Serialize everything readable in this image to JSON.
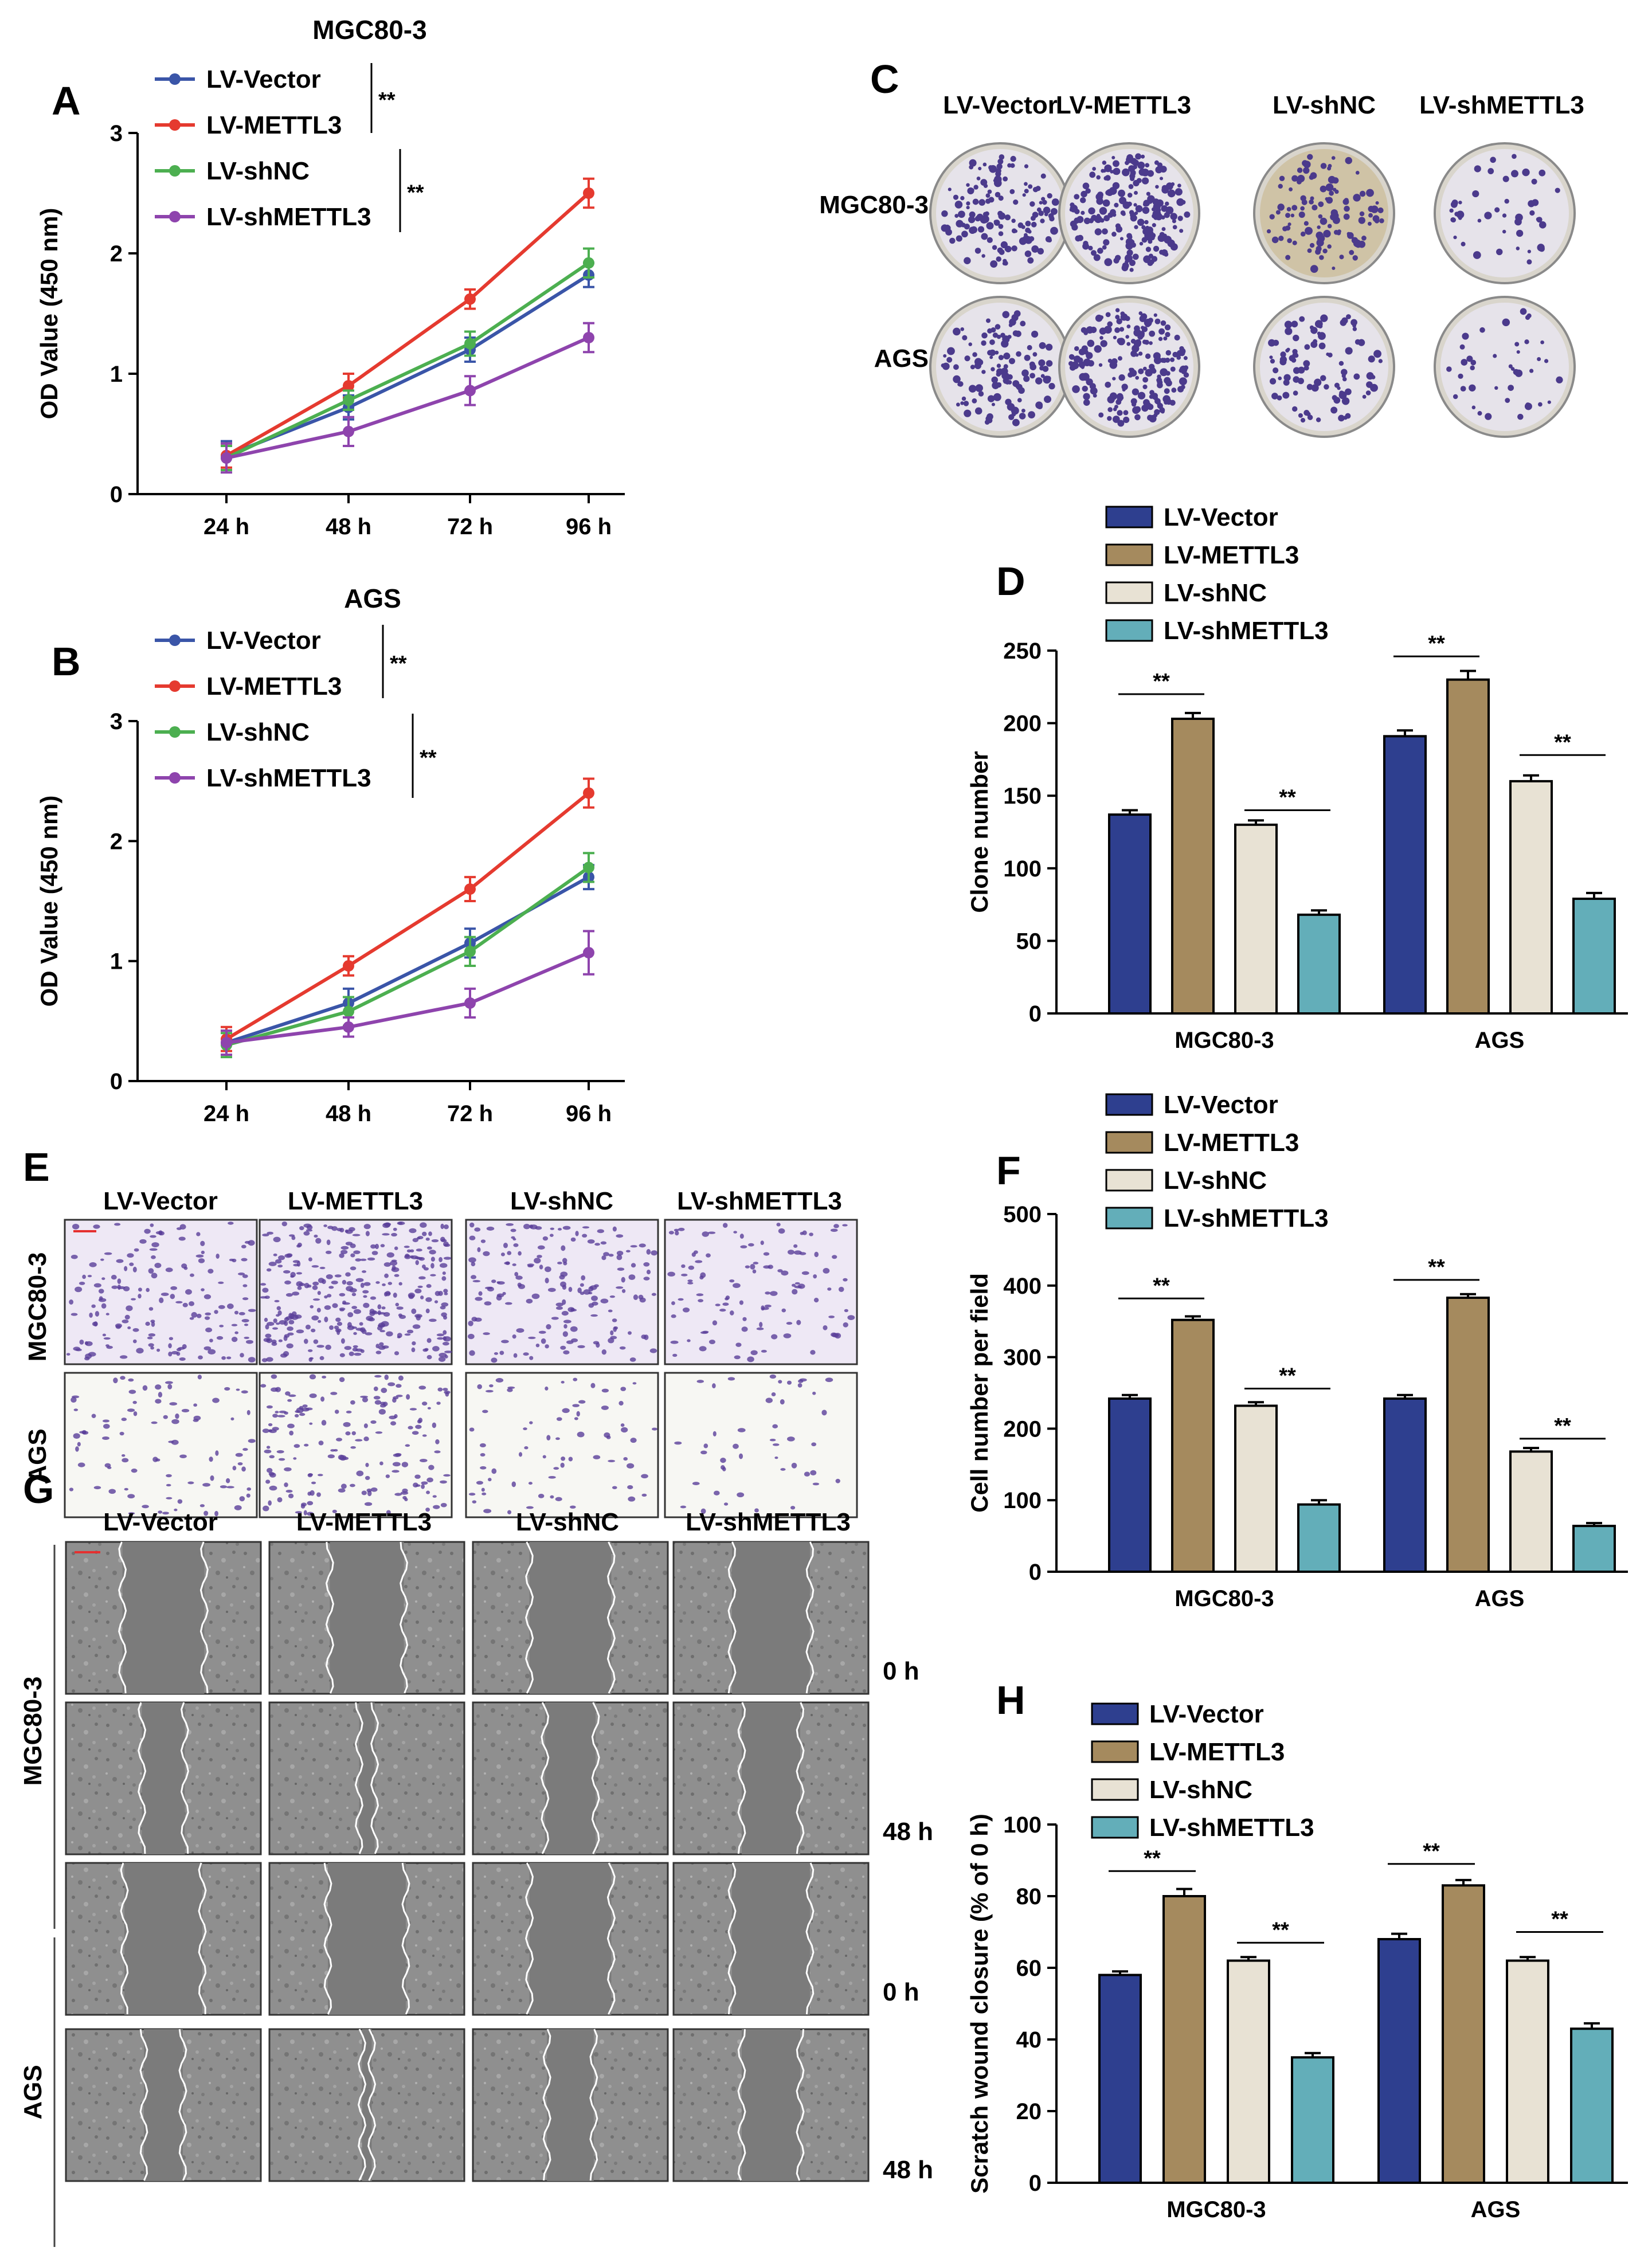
{
  "colors": {
    "vector_line": "#3a55a8",
    "metttl3_line": "#e53a2f",
    "shnc_line": "#4caf50",
    "shmettl3_line": "#8e44ad",
    "vector_bar": "#2e3f8f",
    "mettl3_bar": "#a58a5e",
    "shnc_bar": "#e8e2d4",
    "shmettl3_bar": "#63aeb9"
  },
  "panels": {
    "A": "A",
    "B": "B",
    "C": "C",
    "D": "D",
    "E": "E",
    "F": "F",
    "G": "G",
    "H": "H"
  },
  "groups": [
    "LV-Vector",
    "LV-METTL3",
    "LV-shNC",
    "LV-shMETTL3"
  ],
  "sig": "**",
  "cell_lines": [
    "MGC80-3",
    "AGS"
  ],
  "wound_times": [
    "0 h",
    "48 h",
    "0 h",
    "48 h"
  ],
  "chart_data": [
    {
      "panel": "A",
      "type": "line",
      "title": "MGC80-3",
      "categories": [
        "24 h",
        "48 h",
        "72 h",
        "96 h"
      ],
      "ylabel": "OD Value (450 nm)",
      "ylim": [
        0,
        3
      ],
      "yticks": [
        "0",
        "1",
        "2",
        "3"
      ],
      "series": [
        {
          "name": "LV-Vector",
          "values": [
            0.32,
            0.72,
            1.2,
            1.82
          ],
          "err": [
            0.12,
            0.1,
            0.1,
            0.1
          ]
        },
        {
          "name": "LV-METTL3",
          "values": [
            0.32,
            0.9,
            1.62,
            2.5
          ],
          "err": [
            0.1,
            0.1,
            0.08,
            0.12
          ]
        },
        {
          "name": "LV-shNC",
          "values": [
            0.3,
            0.78,
            1.25,
            1.92
          ],
          "err": [
            0.1,
            0.08,
            0.1,
            0.12
          ]
        },
        {
          "name": "LV-shMETTL3",
          "values": [
            0.3,
            0.52,
            0.86,
            1.3
          ],
          "err": [
            0.12,
            0.12,
            0.12,
            0.12
          ]
        }
      ]
    },
    {
      "panel": "B",
      "type": "line",
      "title": "AGS",
      "categories": [
        "24 h",
        "48 h",
        "72 h",
        "96 h"
      ],
      "ylabel": "OD Value (450 nm)",
      "ylim": [
        0,
        3
      ],
      "yticks": [
        "0",
        "1",
        "2",
        "3"
      ],
      "series": [
        {
          "name": "LV-Vector",
          "values": [
            0.32,
            0.65,
            1.15,
            1.7
          ],
          "err": [
            0.1,
            0.12,
            0.12,
            0.1
          ]
        },
        {
          "name": "LV-METTL3",
          "values": [
            0.35,
            0.96,
            1.6,
            2.4
          ],
          "err": [
            0.1,
            0.08,
            0.1,
            0.12
          ]
        },
        {
          "name": "LV-shNC",
          "values": [
            0.3,
            0.58,
            1.08,
            1.78
          ],
          "err": [
            0.1,
            0.12,
            0.12,
            0.12
          ]
        },
        {
          "name": "LV-shMETTL3",
          "values": [
            0.32,
            0.45,
            0.65,
            1.07
          ],
          "err": [
            0.1,
            0.08,
            0.12,
            0.18
          ]
        }
      ]
    },
    {
      "panel": "D",
      "type": "bar",
      "categories": [
        "MGC80-3",
        "AGS"
      ],
      "ylabel": "Clone number",
      "ylim": [
        0,
        250
      ],
      "yticks": [
        "0",
        "50",
        "100",
        "150",
        "200",
        "250"
      ],
      "series": [
        {
          "name": "LV-Vector",
          "values": [
            137,
            191
          ],
          "err": [
            3,
            4
          ]
        },
        {
          "name": "LV-METTL3",
          "values": [
            203,
            230
          ],
          "err": [
            4,
            6
          ]
        },
        {
          "name": "LV-shNC",
          "values": [
            130,
            160
          ],
          "err": [
            3,
            4
          ]
        },
        {
          "name": "LV-shMETTL3",
          "values": [
            68,
            79
          ],
          "err": [
            3,
            4
          ]
        }
      ],
      "significance": [
        {
          "group": 0,
          "from": 0,
          "to": 1,
          "level": 220
        },
        {
          "group": 0,
          "from": 2,
          "to": 3,
          "level": 140
        },
        {
          "group": 1,
          "from": 0,
          "to": 1,
          "level": 246
        },
        {
          "group": 1,
          "from": 2,
          "to": 3,
          "level": 178
        }
      ]
    },
    {
      "panel": "F",
      "type": "bar",
      "categories": [
        "MGC80-3",
        "AGS"
      ],
      "ylabel": "Cell number per field",
      "ylim": [
        0,
        500
      ],
      "yticks": [
        "0",
        "100",
        "200",
        "300",
        "400",
        "500"
      ],
      "series": [
        {
          "name": "LV-Vector",
          "values": [
            242,
            242
          ],
          "err": [
            5,
            5
          ]
        },
        {
          "name": "LV-METTL3",
          "values": [
            352,
            383
          ],
          "err": [
            5,
            5
          ]
        },
        {
          "name": "LV-shNC",
          "values": [
            232,
            168
          ],
          "err": [
            5,
            5
          ]
        },
        {
          "name": "LV-shMETTL3",
          "values": [
            94,
            64
          ],
          "err": [
            6,
            4
          ]
        }
      ],
      "significance": [
        {
          "group": 0,
          "from": 0,
          "to": 1,
          "level": 382
        },
        {
          "group": 0,
          "from": 2,
          "to": 3,
          "level": 256
        },
        {
          "group": 1,
          "from": 0,
          "to": 1,
          "level": 408
        },
        {
          "group": 1,
          "from": 2,
          "to": 3,
          "level": 186
        }
      ]
    },
    {
      "panel": "H",
      "type": "bar",
      "categories": [
        "MGC80-3",
        "AGS"
      ],
      "ylabel": "Scratch wound closure (% of 0 h)",
      "ylim": [
        0,
        100
      ],
      "yticks": [
        "0",
        "20",
        "40",
        "60",
        "80",
        "100"
      ],
      "series": [
        {
          "name": "LV-Vector",
          "values": [
            58,
            68
          ],
          "err": [
            1,
            1.5
          ]
        },
        {
          "name": "LV-METTL3",
          "values": [
            80,
            83
          ],
          "err": [
            2,
            1.5
          ]
        },
        {
          "name": "LV-shNC",
          "values": [
            62,
            62
          ],
          "err": [
            1,
            1
          ]
        },
        {
          "name": "LV-shMETTL3",
          "values": [
            35,
            43
          ],
          "err": [
            1.2,
            1.5
          ]
        }
      ],
      "significance": [
        {
          "group": 0,
          "from": 0,
          "to": 1,
          "level": 87
        },
        {
          "group": 0,
          "from": 2,
          "to": 3,
          "level": 67
        },
        {
          "group": 1,
          "from": 0,
          "to": 1,
          "level": 89
        },
        {
          "group": 1,
          "from": 2,
          "to": 3,
          "level": 70
        }
      ]
    }
  ]
}
